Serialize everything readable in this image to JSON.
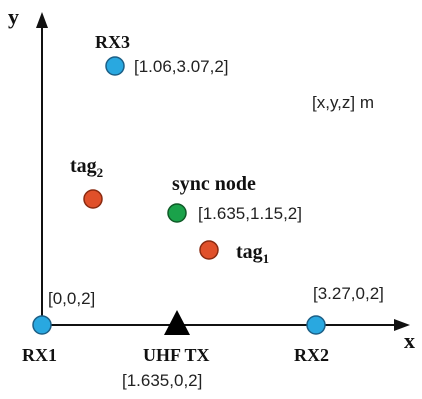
{
  "axes": {
    "x_label": "x",
    "y_label": "y",
    "units_note": "[x,y,z] m"
  },
  "receivers": [
    {
      "label": "RX1",
      "coords": "[0,0,2]",
      "color": "#29a8e0"
    },
    {
      "label": "RX2",
      "coords": "[3.27,0,2]",
      "color": "#29a8e0"
    },
    {
      "label": "RX3",
      "coords": "[1.06,3.07,2]",
      "color": "#29a8e0"
    }
  ],
  "transmitter": {
    "label": "UHF TX",
    "coords": "[1.635,0,2]",
    "color": "#000000"
  },
  "sync_node": {
    "label": "sync node",
    "coords": "[1.635,1.15,2]",
    "color": "#1aa24a"
  },
  "tags": [
    {
      "label": "tag",
      "subscript": "1",
      "color": "#e0502a"
    },
    {
      "label": "tag",
      "subscript": "2",
      "color": "#e0502a"
    }
  ]
}
